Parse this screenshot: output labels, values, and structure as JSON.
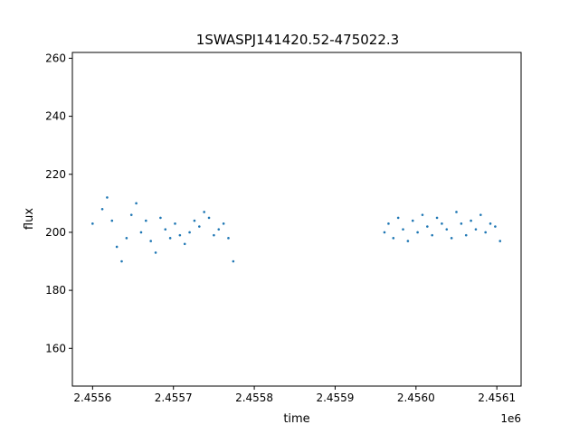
{
  "chart_data": {
    "type": "scatter",
    "title": "1SWASPJ141420.52-475022.3",
    "xlabel": "time",
    "ylabel": "flux",
    "x_offset_label": "1e6",
    "xlim": [
      2455575,
      2456130
    ],
    "ylim": [
      147,
      262
    ],
    "x_ticks": [
      {
        "value": 2455600,
        "label": "2.4556"
      },
      {
        "value": 2455700,
        "label": "2.4557"
      },
      {
        "value": 2455800,
        "label": "2.4558"
      },
      {
        "value": 2455900,
        "label": "2.4559"
      },
      {
        "value": 2456000,
        "label": "2.4560"
      },
      {
        "value": 2456100,
        "label": "2.4561"
      }
    ],
    "y_ticks": [
      {
        "value": 160,
        "label": "160"
      },
      {
        "value": 180,
        "label": "180"
      },
      {
        "value": 200,
        "label": "200"
      },
      {
        "value": 220,
        "label": "220"
      },
      {
        "value": 240,
        "label": "240"
      },
      {
        "value": 260,
        "label": "260"
      }
    ],
    "grid": false,
    "point_color": "#1f77b4",
    "series": [
      {
        "x": [
          2455600,
          2455612,
          2455618,
          2455624,
          2455630,
          2455636,
          2455642,
          2455648,
          2455654,
          2455660,
          2455666,
          2455672,
          2455678,
          2455684,
          2455690,
          2455696,
          2455702,
          2455708,
          2455714,
          2455720,
          2455726,
          2455732,
          2455738,
          2455744,
          2455750,
          2455756,
          2455762,
          2455768,
          2455774,
          2455961,
          2455966,
          2455972,
          2455978,
          2455984,
          2455990,
          2455996,
          2456002,
          2456008,
          2456014,
          2456020,
          2456026,
          2456032,
          2456038,
          2456044,
          2456050,
          2456056,
          2456062,
          2456068,
          2456074,
          2456080,
          2456086,
          2456092,
          2456098,
          2456104
        ],
        "y": [
          203,
          208,
          212,
          204,
          195,
          190,
          198,
          206,
          210,
          200,
          204,
          197,
          193,
          205,
          201,
          198,
          203,
          199,
          196,
          200,
          204,
          202,
          207,
          205,
          199,
          201,
          203,
          198,
          190,
          200,
          203,
          198,
          205,
          201,
          197,
          204,
          200,
          206,
          202,
          199,
          205,
          203,
          201,
          198,
          207,
          203,
          199,
          204,
          201,
          206,
          200,
          203,
          202,
          197
        ]
      }
    ]
  }
}
